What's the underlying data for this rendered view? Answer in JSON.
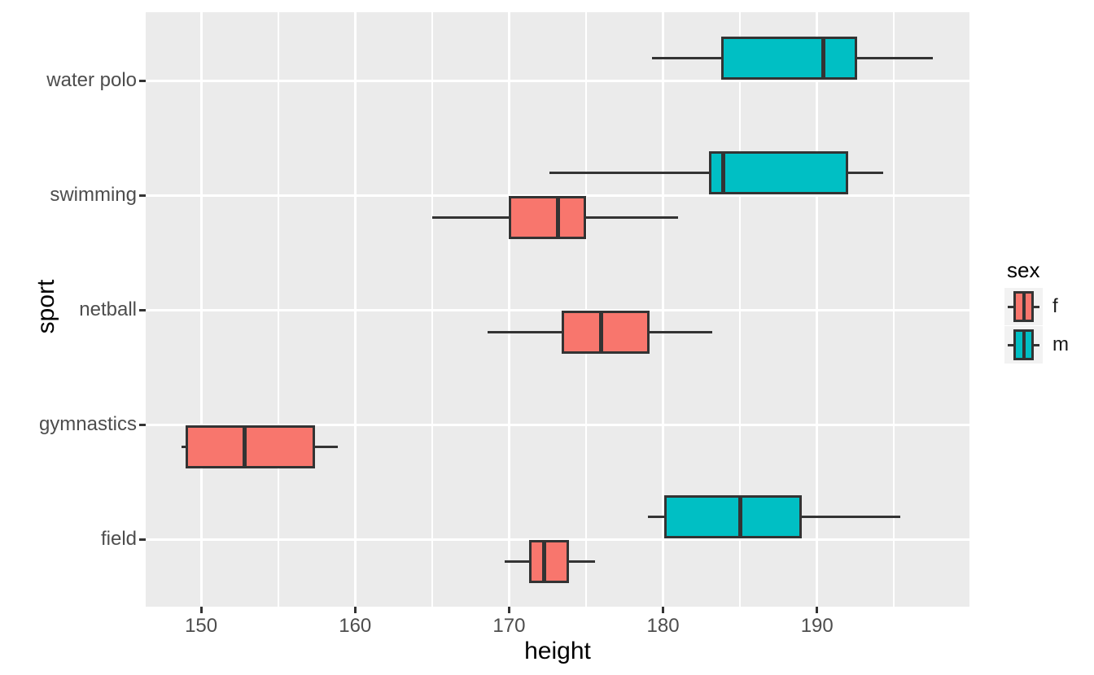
{
  "chart_data": {
    "type": "boxplot",
    "orientation": "horizontal",
    "title": "",
    "xlabel": "height",
    "ylabel": "sport",
    "x_domain": [
      146.4,
      199.9
    ],
    "x_ticks": [
      150,
      160,
      170,
      180,
      190
    ],
    "x_minor_ticks": [
      155,
      165,
      175,
      185,
      195
    ],
    "categories": [
      "water polo",
      "swimming",
      "netball",
      "gymnastics",
      "field"
    ],
    "legend": {
      "title": "sex",
      "entries": [
        {
          "label": "f",
          "sex": "f",
          "color": "#F8766D"
        },
        {
          "label": "m",
          "sex": "m",
          "color": "#00BFC4"
        }
      ]
    },
    "boxes": [
      {
        "sport": "water polo",
        "sex": "m",
        "whisker_low": 179.3,
        "q1": 183.8,
        "median": 190.4,
        "q3": 192.6,
        "whisker_high": 197.5
      },
      {
        "sport": "swimming",
        "sex": "m",
        "whisker_low": 172.6,
        "q1": 183.0,
        "median": 183.9,
        "q3": 192.0,
        "whisker_high": 194.3
      },
      {
        "sport": "swimming",
        "sex": "f",
        "whisker_low": 165.0,
        "q1": 170.0,
        "median": 173.2,
        "q3": 175.0,
        "whisker_high": 181.0
      },
      {
        "sport": "netball",
        "sex": "f",
        "whisker_low": 168.6,
        "q1": 173.4,
        "median": 176.0,
        "q3": 179.1,
        "whisker_high": 183.2
      },
      {
        "sport": "gymnastics",
        "sex": "f",
        "whisker_low": 148.7,
        "q1": 149.0,
        "median": 152.8,
        "q3": 157.4,
        "whisker_high": 158.9
      },
      {
        "sport": "field",
        "sex": "m",
        "whisker_low": 179.0,
        "q1": 180.1,
        "median": 185.0,
        "q3": 189.0,
        "whisker_high": 195.4
      },
      {
        "sport": "field",
        "sex": "f",
        "whisker_low": 169.7,
        "q1": 171.3,
        "median": 172.3,
        "q3": 173.9,
        "whisker_high": 175.6
      }
    ]
  },
  "colors": {
    "panel_background": "#EBEBEB",
    "gridline": "#FFFFFF",
    "box_border": "#333333",
    "axis_text": "#4D4D4D",
    "axis_title": "#000000",
    "legend_key_background": "#F2F2F2",
    "sex_f": "#F8766D",
    "sex_m": "#00BFC4"
  }
}
